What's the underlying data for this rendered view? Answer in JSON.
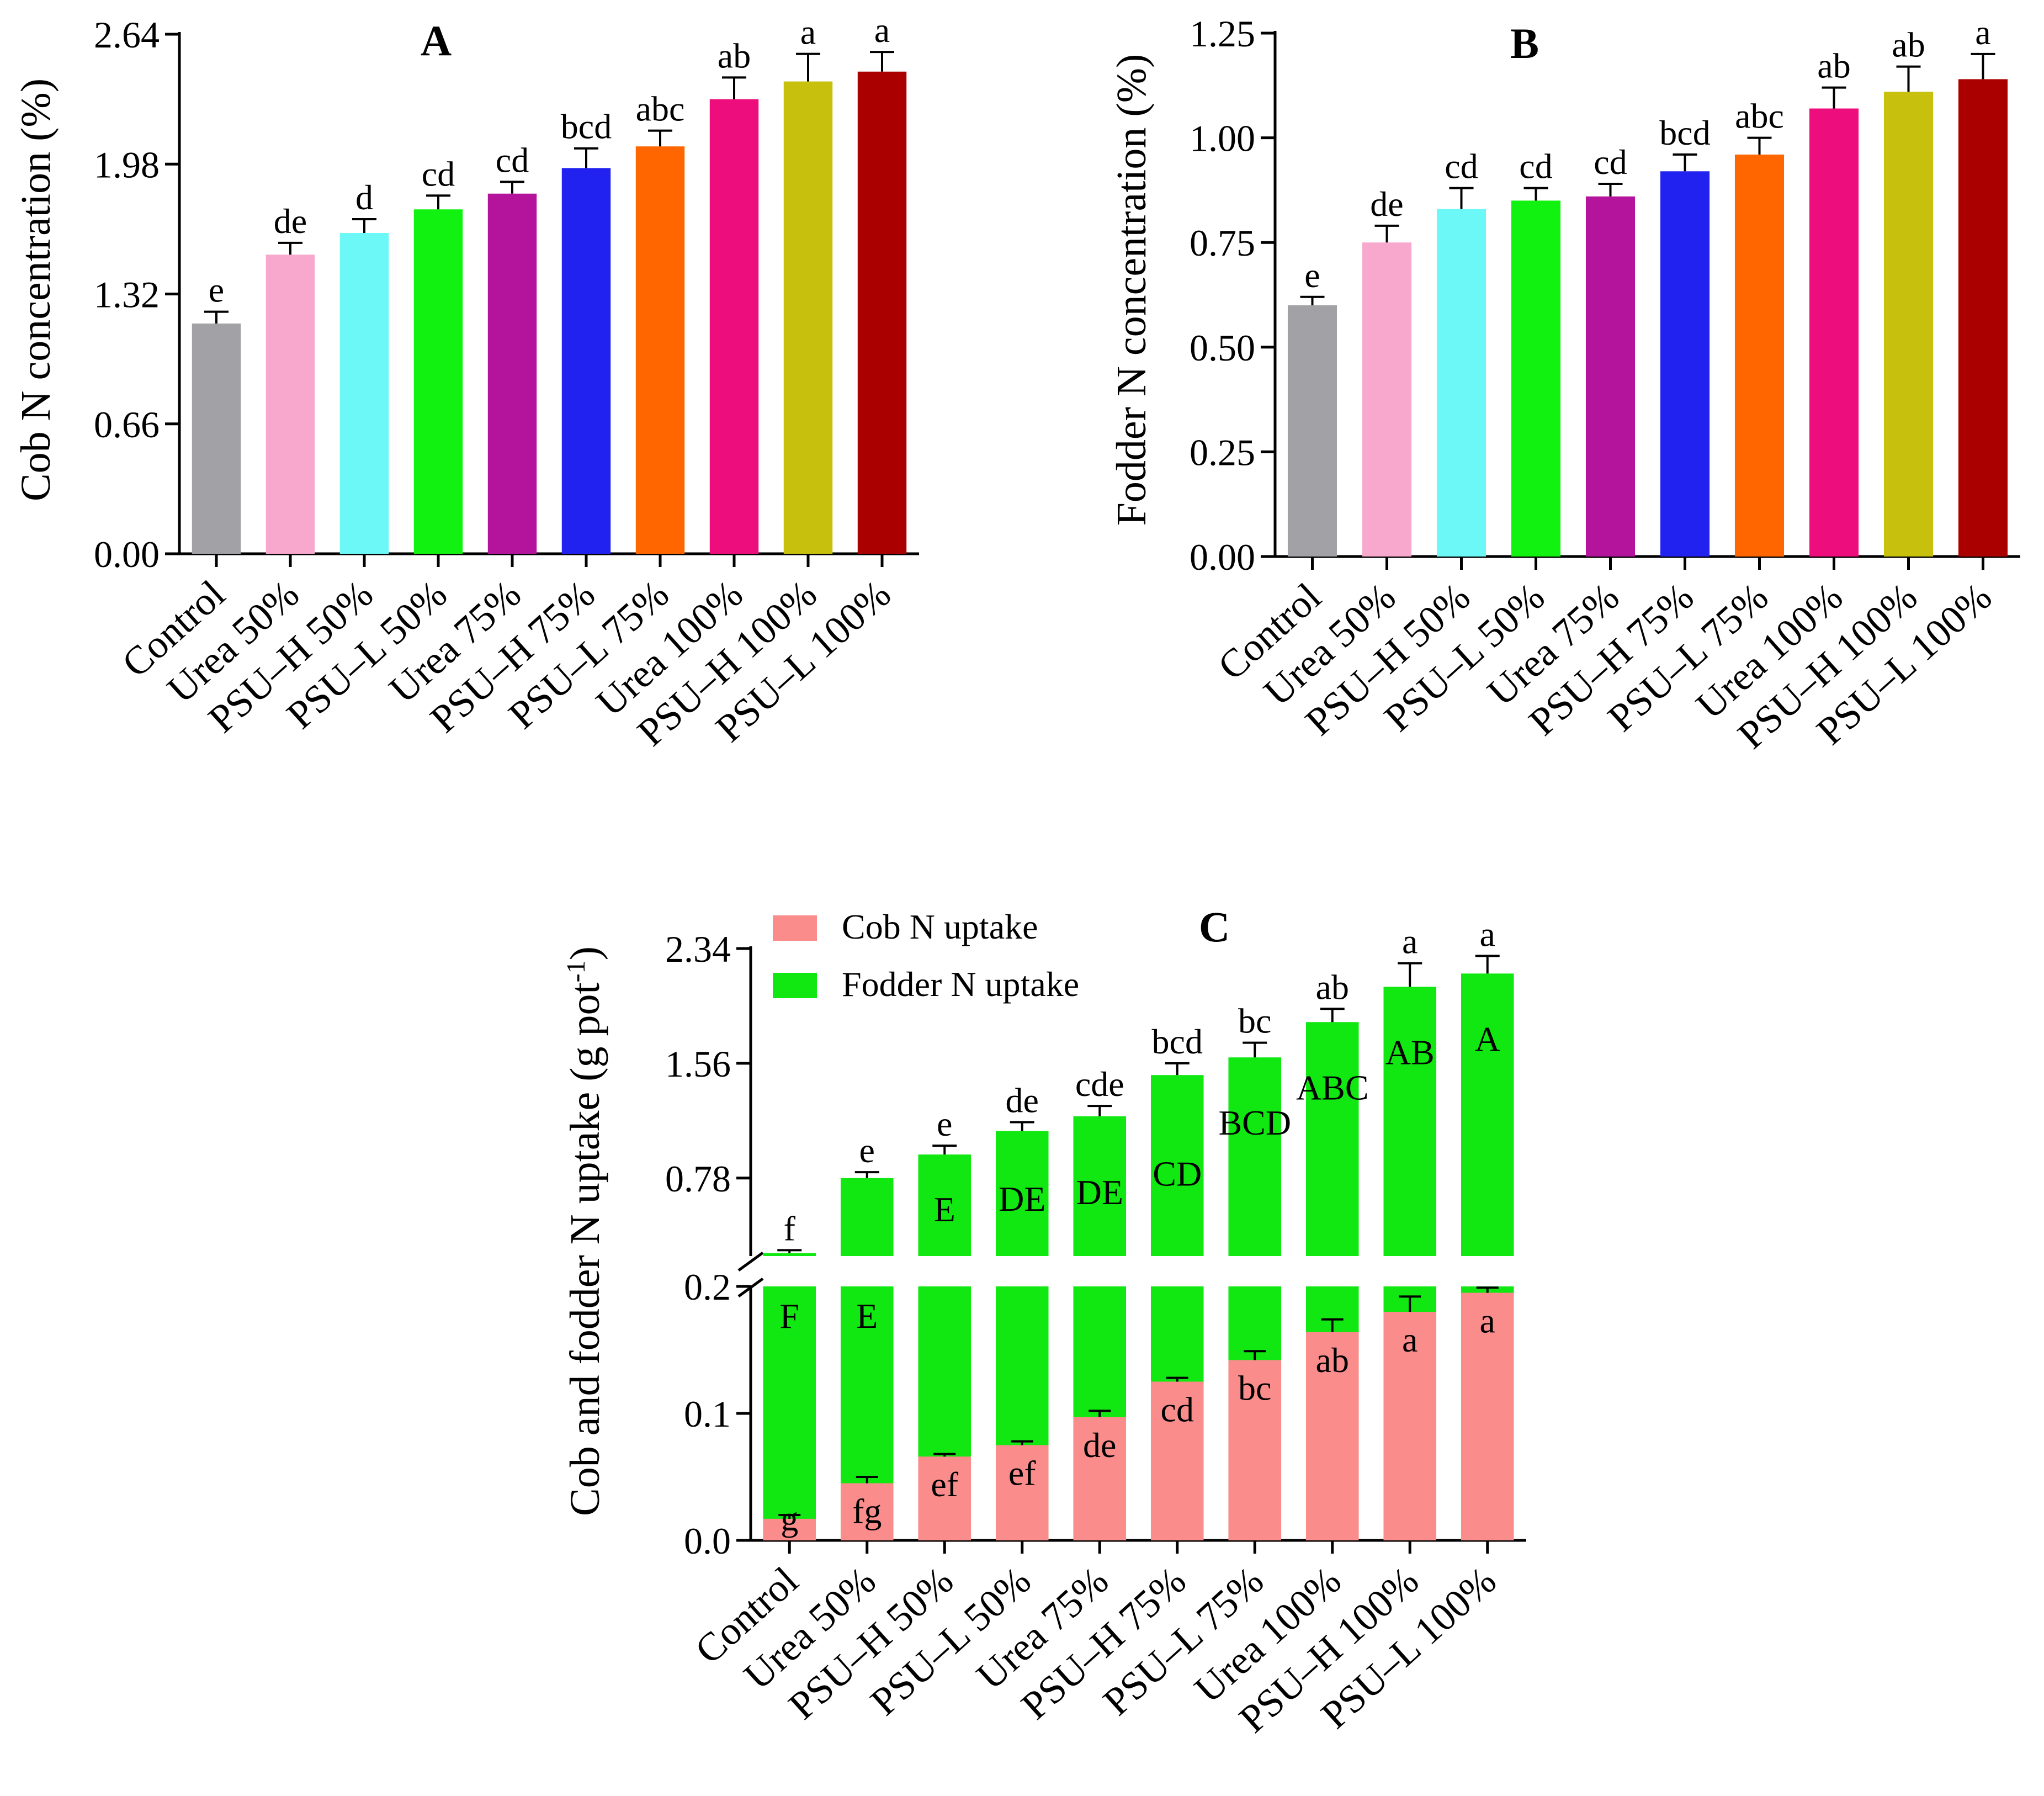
{
  "chart_data": [
    {
      "panel": "A",
      "type": "bar",
      "title": "A",
      "ylabel": "Cob N concentration (%)",
      "ylim": [
        0,
        2.64
      ],
      "yticks": [
        "0.00",
        "0.66",
        "1.32",
        "1.98",
        "2.64"
      ],
      "categories": [
        "Control",
        "Urea 50%",
        "PSU–H 50%",
        "PSU–L 50%",
        "Urea 75%",
        "PSU–H 75%",
        "PSU–L 75%",
        "Urea 100%",
        "PSU–H 100%",
        "PSU–L 100%"
      ],
      "values": [
        1.17,
        1.52,
        1.63,
        1.75,
        1.83,
        1.96,
        2.07,
        2.31,
        2.4,
        2.45
      ],
      "errors": [
        0.06,
        0.06,
        0.07,
        0.07,
        0.06,
        0.1,
        0.08,
        0.11,
        0.14,
        0.1
      ],
      "letters": [
        "e",
        "de",
        "d",
        "cd",
        "cd",
        "bcd",
        "abc",
        "ab",
        "a",
        "a"
      ],
      "colors": [
        "#a2a2a6",
        "#f7a8cc",
        "#6df8f8",
        "#11f211",
        "#b4149c",
        "#2222f0",
        "#ff6600",
        "#ee0d7c",
        "#c7c10e",
        "#aa0000"
      ]
    },
    {
      "panel": "B",
      "type": "bar",
      "title": "B",
      "ylabel": "Fodder N concentration (%)",
      "ylim": [
        0,
        1.25
      ],
      "yticks": [
        "0.00",
        "0.25",
        "0.50",
        "0.75",
        "1.00",
        "1.25"
      ],
      "categories": [
        "Control",
        "Urea 50%",
        "PSU–H 50%",
        "PSU–L 50%",
        "Urea 75%",
        "PSU–H 75%",
        "PSU–L 75%",
        "Urea 100%",
        "PSU–H 100%",
        "PSU–L 100%"
      ],
      "values": [
        0.6,
        0.75,
        0.83,
        0.85,
        0.86,
        0.92,
        0.96,
        1.07,
        1.11,
        1.14
      ],
      "errors": [
        0.02,
        0.04,
        0.05,
        0.03,
        0.03,
        0.04,
        0.04,
        0.05,
        0.06,
        0.06
      ],
      "letters": [
        "e",
        "de",
        "cd",
        "cd",
        "cd",
        "bcd",
        "abc",
        "ab",
        "ab",
        "a"
      ],
      "colors": [
        "#a2a2a6",
        "#f7a8cc",
        "#6df8f8",
        "#11f211",
        "#b4149c",
        "#2222f0",
        "#ff6600",
        "#ee0d7c",
        "#c7c10e",
        "#aa0000"
      ]
    },
    {
      "panel": "C",
      "type": "stacked-bar",
      "title": "C",
      "ylabel": "Cob and fodder N uptake (g pot",
      "ylabel_sup": "-1",
      "ylabel_end": ")",
      "axis_break": [
        0.2,
        0.25
      ],
      "lower_range": [
        0,
        0.2
      ],
      "upper_range": [
        0.25,
        2.34
      ],
      "yticks_lower": [
        "0.0",
        "0.1",
        "0.2"
      ],
      "yticks_upper": [
        "0.78",
        "1.56",
        "2.34"
      ],
      "categories": [
        "Control",
        "Urea 50%",
        "PSU–H 50%",
        "PSU–L 50%",
        "Urea 75%",
        "PSU–H 75%",
        "PSU–L 75%",
        "Urea 100%",
        "PSU–H 100%",
        "PSU–L 100%"
      ],
      "series": [
        {
          "name": "Cob N uptake",
          "color": "#fa8c8c",
          "values": [
            0.017,
            0.045,
            0.066,
            0.075,
            0.097,
            0.125,
            0.142,
            0.164,
            0.18,
            0.195
          ],
          "errors": [
            0.003,
            0.005,
            0.002,
            0.003,
            0.005,
            0.003,
            0.007,
            0.01,
            0.012,
            0.004
          ],
          "letters": [
            "g",
            "fg",
            "ef",
            "ef",
            "de",
            "cd",
            "bc",
            "ab",
            "a",
            "a"
          ]
        },
        {
          "name": "Fodder N uptake",
          "color": "#11e811",
          "totals": [
            0.27,
            0.78,
            0.94,
            1.1,
            1.2,
            1.48,
            1.6,
            1.84,
            2.08,
            2.17
          ],
          "errors": [
            0.02,
            0.04,
            0.06,
            0.06,
            0.07,
            0.08,
            0.1,
            0.09,
            0.16,
            0.12
          ],
          "letters": [
            "f",
            "e",
            "e",
            "de",
            "cde",
            "bcd",
            "bc",
            "ab",
            "a",
            "a"
          ],
          "inner_letters": [
            "F",
            "E",
            "E",
            "DE",
            "DE",
            "CD",
            "BCD",
            "ABC",
            "AB",
            "A"
          ]
        }
      ]
    }
  ]
}
